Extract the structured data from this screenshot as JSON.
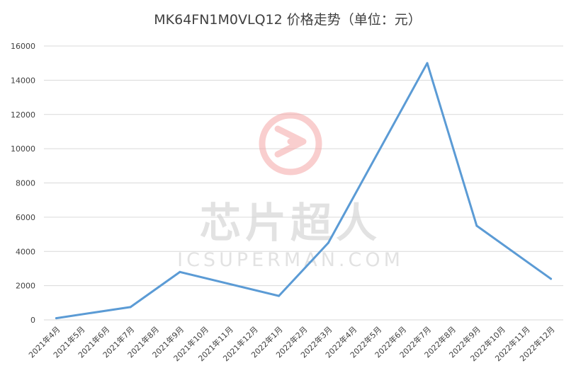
{
  "chart_data": {
    "type": "line",
    "title": "MK64FN1M0VLQ12 价格走势（单位：元）",
    "xlabel": "",
    "ylabel": "",
    "ylim": [
      0,
      16000
    ],
    "yticks": [
      0,
      2000,
      4000,
      6000,
      8000,
      10000,
      12000,
      14000,
      16000
    ],
    "grid": true,
    "legend": "none",
    "categories": [
      "2021年4月",
      "2021年5月",
      "2021年6月",
      "2021年7月",
      "2021年8月",
      "2021年9月",
      "2021年10月",
      "2021年11月",
      "2021年12月",
      "2022年1月",
      "2022年2月",
      "2022年3月",
      "2022年4月",
      "2022年5月",
      "2022年6月",
      "2022年7月",
      "2022年8月",
      "2022年9月",
      "2022年10月",
      "2022年11月",
      "2022年12月"
    ],
    "x": [
      "2021年4月",
      "2021年7月",
      "2021年9月",
      "2022年1月",
      "2022年3月",
      "2022年7月",
      "2022年9月",
      "2022年12月"
    ],
    "series": [
      {
        "values": [
          100,
          750,
          2800,
          1400,
          4500,
          15000,
          5500,
          2400
        ],
        "color": "#5b9bd5"
      }
    ]
  },
  "watermark": {
    "cn": "芯片超人",
    "en": "ICSUPERMAN.COM",
    "color": "#f4a6a6"
  }
}
